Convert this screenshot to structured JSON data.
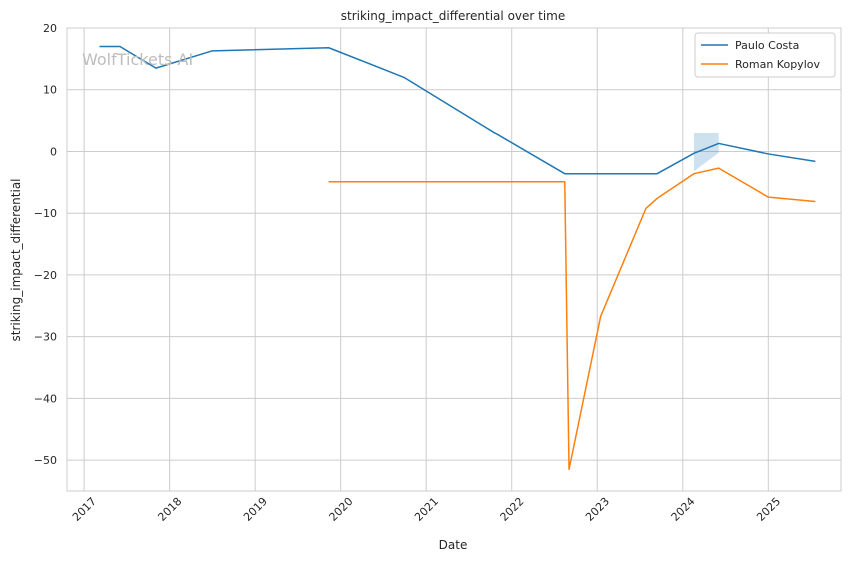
{
  "chart_data": {
    "type": "line",
    "title": "striking_impact_differential over time",
    "xlabel": "Date",
    "ylabel": "striking_impact_differential",
    "watermark": "WolfTickets AI",
    "xlim": [
      2016.8,
      2025.85
    ],
    "ylim": [
      -55,
      20
    ],
    "x_ticks": [
      2017,
      2018,
      2019,
      2020,
      2021,
      2022,
      2023,
      2024,
      2025
    ],
    "x_tick_labels": [
      "2017",
      "2018",
      "2019",
      "2020",
      "2021",
      "2022",
      "2023",
      "2024",
      "2025"
    ],
    "y_ticks": [
      20,
      10,
      0,
      -10,
      -20,
      -30,
      -40,
      -50
    ],
    "y_tick_labels": [
      "20",
      "10",
      "0",
      "−10",
      "−20",
      "−30",
      "−40",
      "−50"
    ],
    "grid": true,
    "legend_position": "top-right",
    "series": [
      {
        "name": "Paulo Costa",
        "color": "#1f77b4",
        "x": [
          2017.18,
          2017.42,
          2017.84,
          2018.5,
          2019.86,
          2020.74,
          2021.8,
          2021.83,
          2022.62,
          2023.7,
          2024.13,
          2024.42,
          2025.0,
          2025.55
        ],
        "y": [
          17.0,
          17.0,
          13.5,
          16.3,
          16.8,
          12.0,
          3.0,
          2.8,
          -3.6,
          -3.6,
          -0.3,
          1.3,
          -0.4,
          -1.6
        ],
        "band": {
          "x": [
            2024.13,
            2024.42
          ],
          "upper": [
            3.0,
            3.0
          ],
          "lower": [
            -3.2,
            -0.2
          ]
        }
      },
      {
        "name": "Roman Kopylov",
        "color": "#ff7f0e",
        "x": [
          2019.86,
          2022.62,
          2022.67,
          2023.04,
          2023.57,
          2023.7,
          2024.13,
          2024.42,
          2025.0,
          2025.55
        ],
        "y": [
          -4.9,
          -4.9,
          -51.5,
          -26.7,
          -9.2,
          -7.6,
          -3.6,
          -2.7,
          -7.4,
          -8.1
        ]
      }
    ]
  }
}
